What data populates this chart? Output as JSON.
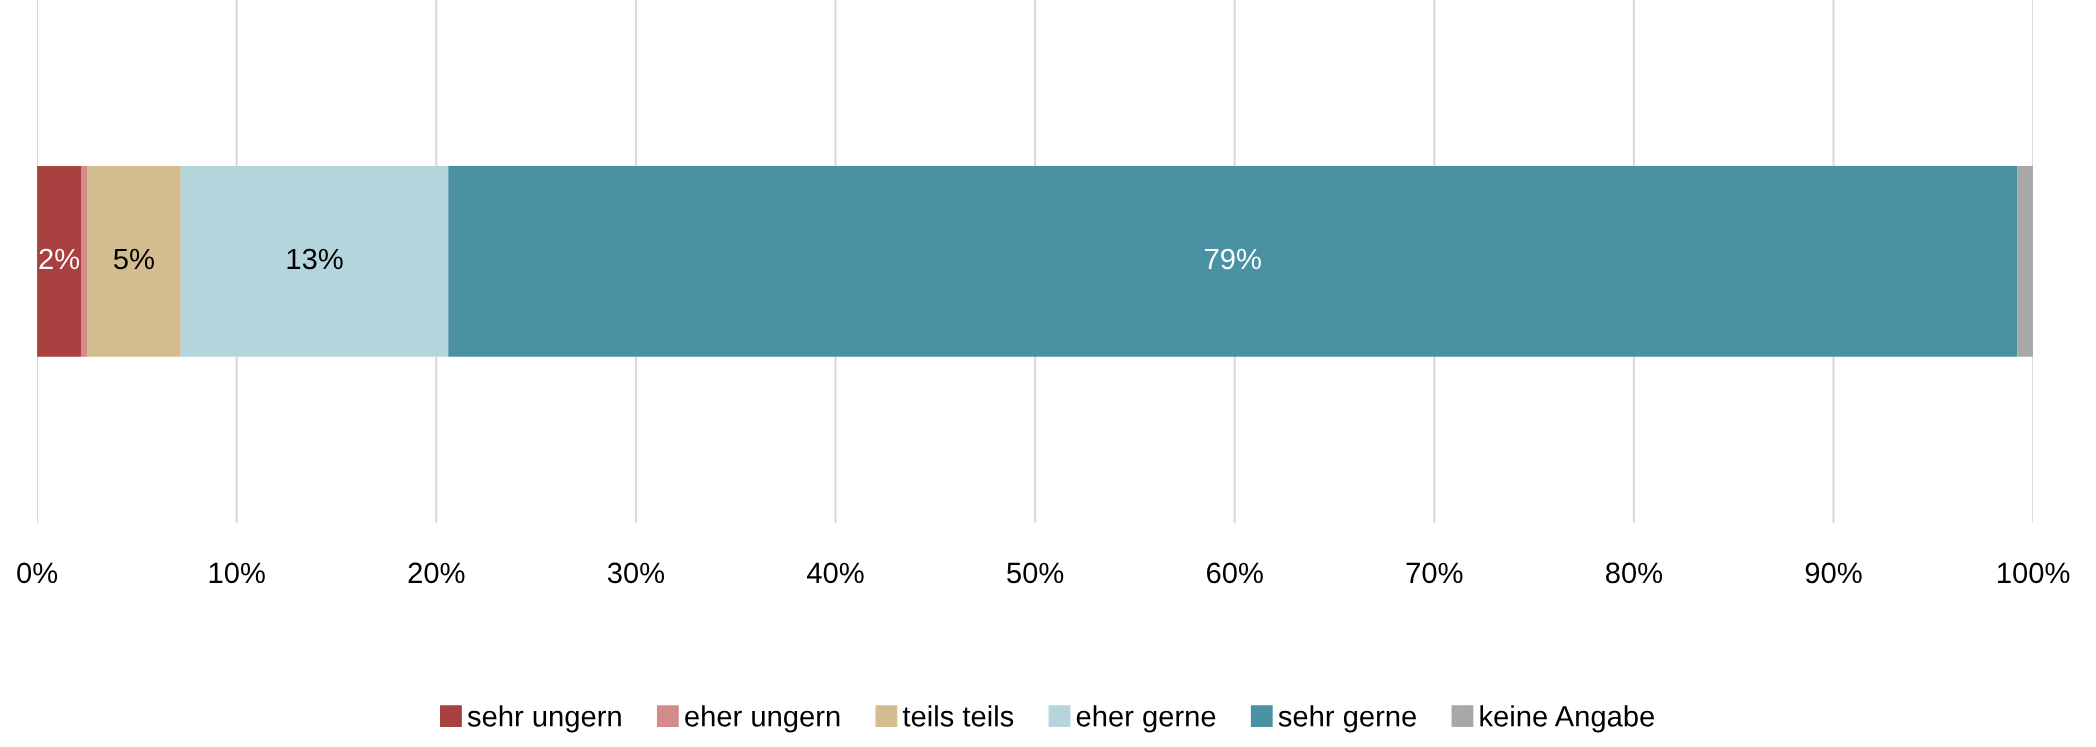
{
  "chart_data": {
    "type": "bar",
    "orientation": "horizontal",
    "stacked": true,
    "categories": [
      null
    ],
    "series": [
      {
        "name": "sehr ungern",
        "color": "#a84040",
        "values": [
          2.2
        ],
        "value_labels": [
          "2%"
        ]
      },
      {
        "name": "eher ungern",
        "color": "#d58a8a",
        "values": [
          0.3
        ],
        "value_labels": [
          null
        ]
      },
      {
        "name": "teils teils",
        "color": "#d3bd8e",
        "values": [
          4.7
        ],
        "value_labels": [
          "5%"
        ]
      },
      {
        "name": "eher gerne",
        "color": "#b5d5dc",
        "values": [
          13.4
        ],
        "value_labels": [
          "13%"
        ]
      },
      {
        "name": "sehr gerne",
        "color": "#4a91a4",
        "values": [
          78.6
        ],
        "value_labels": [
          "79%"
        ]
      },
      {
        "name": "keine Angabe",
        "color": "#a8a8a8",
        "values": [
          0.8
        ],
        "value_labels": [
          null
        ]
      }
    ],
    "xlim": [
      0,
      100
    ],
    "xticks": [
      {
        "value": 0,
        "label": "0%"
      },
      {
        "value": 10,
        "label": "10%"
      },
      {
        "value": 20,
        "label": "20%"
      },
      {
        "value": 30,
        "label": "30%"
      },
      {
        "value": 40,
        "label": "40%"
      },
      {
        "value": 50,
        "label": "50%"
      },
      {
        "value": 60,
        "label": "60%"
      },
      {
        "value": 70,
        "label": "70%"
      },
      {
        "value": 80,
        "label": "80%"
      },
      {
        "value": 90,
        "label": "90%"
      },
      {
        "value": 100,
        "label": "100%"
      }
    ],
    "grid": "x",
    "legend": "bottom",
    "tick_labels": "x"
  }
}
